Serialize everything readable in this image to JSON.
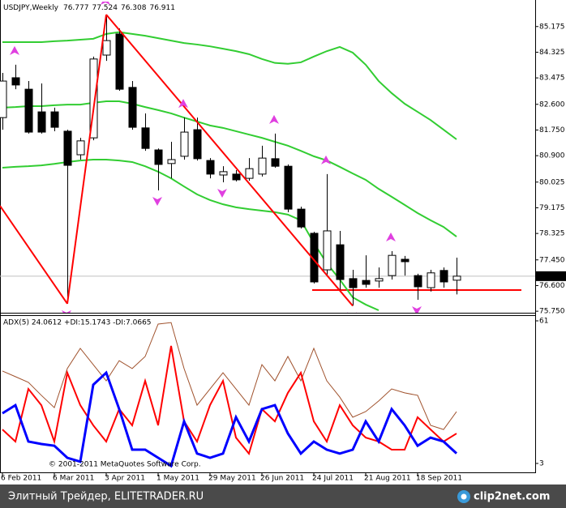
{
  "chart_data": [
    {
      "type": "candlestick",
      "title": "USDJPY,Weekly",
      "categories": [
        "6 Feb 2011",
        null,
        null,
        null,
        "6 Mar 2011",
        null,
        null,
        null,
        "3 Apr 2011",
        null,
        null,
        null,
        "1 May 2011",
        null,
        null,
        null,
        "29 May 2011",
        null,
        null,
        null,
        "26 Jun 2011",
        null,
        null,
        null,
        "24 Jul 2011",
        null,
        null,
        null,
        "21 Aug 2011",
        null,
        null,
        null,
        "18 Sep 2011",
        null,
        null,
        null
      ],
      "open": [
        82.16,
        83.48,
        83.1,
        82.35,
        82.35,
        81.71,
        80.93,
        81.49,
        84.23,
        84.93,
        83.16,
        81.82,
        81.09,
        80.64,
        80.88,
        81.76,
        80.74,
        80.26,
        80.29,
        80.15,
        80.29,
        80.8,
        80.55,
        79.13,
        78.33,
        77.12,
        77.95,
        76.83,
        76.77,
        76.75,
        76.93,
        77.47,
        76.93,
        76.53,
        77.1,
        76.777
      ],
      "high": [
        83.64,
        83.91,
        83.37,
        83.29,
        82.49,
        81.76,
        81.49,
        84.18,
        85.57,
        85.11,
        83.37,
        82.3,
        81.14,
        81.36,
        82.16,
        82.16,
        80.82,
        80.55,
        80.42,
        80.82,
        81.23,
        81.63,
        80.61,
        79.21,
        78.38,
        80.29,
        78.41,
        77.12,
        77.6,
        77.2,
        77.74,
        77.58,
        76.99,
        77.12,
        77.2,
        77.524
      ],
      "low": [
        81.76,
        83.1,
        81.63,
        81.63,
        81.71,
        76.0,
        80.77,
        81.41,
        84.04,
        83.05,
        81.76,
        81.06,
        79.75,
        80.15,
        80.77,
        80.74,
        80.15,
        80.02,
        80.05,
        80.07,
        80.21,
        80.5,
        79.03,
        78.49,
        76.67,
        76.93,
        76.4,
        75.93,
        76.53,
        76.53,
        76.8,
        76.93,
        76.13,
        76.4,
        76.53,
        76.308
      ],
      "close": [
        83.37,
        83.24,
        81.68,
        81.68,
        81.84,
        80.58,
        81.39,
        84.1,
        84.71,
        83.1,
        81.84,
        81.14,
        80.61,
        80.77,
        81.68,
        80.8,
        80.29,
        80.37,
        80.1,
        80.47,
        80.82,
        80.55,
        79.13,
        78.54,
        76.72,
        78.41,
        76.8,
        76.53,
        76.64,
        76.83,
        77.6,
        77.39,
        76.56,
        77.02,
        76.72,
        76.911
      ],
      "up_color": "#ffffff",
      "down_color": "#000000",
      "ylim": [
        75.7,
        86.0
      ],
      "yticks": [
        85.175,
        84.325,
        83.475,
        {
          "value": 82.6,
          "label": "82.600"
        },
        {
          "value": 81.75,
          "label": "81.750"
        },
        {
          "value": 80.9,
          "label": "80.900"
        },
        80.025,
        79.175,
        78.325,
        {
          "value": 77.45,
          "label": "77.450"
        },
        {
          "value": 76.6,
          "label": "76.600"
        },
        {
          "value": 75.75,
          "label": "75.750"
        }
      ],
      "series": [
        {
          "style": "line",
          "color": "#32cd32",
          "values": [
            84.66,
            84.66,
            84.66,
            84.66,
            84.69,
            84.71,
            84.74,
            84.77,
            84.93,
            84.99,
            84.93,
            84.87,
            84.79,
            84.71,
            84.63,
            84.58,
            84.52,
            84.44,
            84.36,
            84.26,
            84.1,
            83.97,
            83.94,
            83.99,
            84.18,
            84.36,
            84.5,
            84.31,
            83.91,
            83.37,
            82.97,
            82.62,
            82.35,
            82.08,
            81.76,
            81.44
          ]
        },
        {
          "style": "line",
          "color": "#32cd32",
          "values": [
            82.49,
            82.51,
            82.54,
            82.54,
            82.57,
            82.59,
            82.59,
            82.65,
            82.7,
            82.7,
            82.62,
            82.51,
            82.41,
            82.3,
            82.16,
            82.03,
            81.9,
            81.82,
            81.71,
            81.6,
            81.49,
            81.36,
            81.23,
            81.06,
            80.88,
            80.74,
            80.53,
            80.31,
            80.1,
            79.8,
            79.54,
            79.27,
            79.0,
            78.76,
            78.54,
            78.22
          ]
        },
        {
          "style": "line",
          "color": "#32cd32",
          "values": [
            80.5,
            80.53,
            80.55,
            80.58,
            80.63,
            80.69,
            80.74,
            80.77,
            80.77,
            80.74,
            80.69,
            80.55,
            80.37,
            80.15,
            79.88,
            79.62,
            79.43,
            79.29,
            79.19,
            79.13,
            79.08,
            79.03,
            78.95,
            78.76,
            78.01,
            77.34,
            76.8,
            76.21,
            75.97,
            75.78,
            null,
            null,
            null,
            null,
            null,
            null
          ]
        },
        {
          "style": "section",
          "color": "#ff0000",
          "values": [
            79.24,
            null,
            null,
            null,
            null,
            76.0,
            null,
            null,
            85.57,
            null,
            null,
            null,
            null,
            null,
            null,
            null,
            null,
            null,
            null,
            null,
            null,
            null,
            null,
            null,
            null,
            null,
            null,
            75.93,
            null,
            null,
            null,
            null,
            null,
            null,
            null,
            null
          ]
        },
        {
          "style": "arrow-up",
          "color": "#e040e0",
          "values": [
            null,
            83.91,
            null,
            null,
            null,
            null,
            null,
            null,
            85.57,
            null,
            null,
            null,
            null,
            null,
            82.16,
            null,
            null,
            null,
            null,
            null,
            null,
            81.63,
            null,
            null,
            null,
            80.29,
            null,
            null,
            null,
            null,
            77.74,
            null,
            null,
            null,
            null,
            null
          ]
        },
        {
          "style": "arrow-down",
          "color": "#e040e0",
          "values": [
            null,
            null,
            null,
            null,
            null,
            76.0,
            null,
            null,
            null,
            null,
            null,
            null,
            79.75,
            null,
            null,
            null,
            null,
            80.02,
            null,
            null,
            null,
            null,
            null,
            null,
            null,
            null,
            null,
            75.93,
            null,
            null,
            null,
            null,
            76.13,
            null,
            null,
            null
          ]
        }
      ],
      "hlines": [
        {
          "value": 76.45,
          "color": "#ff0000"
        }
      ],
      "last_price_color": "#c0c0c0"
    },
    {
      "type": "line",
      "title": "ADX(5) 24.0612 +DI:15.1743 -DI:7.0665",
      "annotation": "© 2001-2011 MetaQuotes Software Corp.",
      "ylim": [
        -0.63,
        63.31
      ],
      "yticks": [
        61,
        3
      ],
      "series": [
        {
          "color": "#a0522d",
          "width": 1,
          "values": [
            40.6,
            38.3,
            36.0,
            30.7,
            25.7,
            41.6,
            49.8,
            43.2,
            36.6,
            44.8,
            41.6,
            46.5,
            59.7,
            60.3,
            41.6,
            26.7,
            33.3,
            39.9,
            33.3,
            26.7,
            43.2,
            36.6,
            46.5,
            36.6,
            49.8,
            36.6,
            30.0,
            21.8,
            24.1,
            28.4,
            33.3,
            31.7,
            30.7,
            18.5,
            16.8,
            24.0612
          ]
        },
        {
          "color": "#ff0000",
          "width": 2,
          "values": [
            16.8,
            11.9,
            33.3,
            26.7,
            11.9,
            39.9,
            26.7,
            18.5,
            11.9,
            25.1,
            18.5,
            36.6,
            18.5,
            50.8,
            20.1,
            11.9,
            26.7,
            36.6,
            13.5,
            7.0,
            25.1,
            20.1,
            31.7,
            39.9,
            20.1,
            11.9,
            26.7,
            18.5,
            13.5,
            11.9,
            8.6,
            8.6,
            21.8,
            16.8,
            11.9,
            15.1743
          ]
        },
        {
          "color": "#0000ff",
          "width": 3,
          "values": [
            23.4,
            26.7,
            11.9,
            10.9,
            10.2,
            5.3,
            3.7,
            35.0,
            39.9,
            25.1,
            8.6,
            8.6,
            5.3,
            2.0,
            20.1,
            7.0,
            5.3,
            7.0,
            21.8,
            11.9,
            25.1,
            26.7,
            15.2,
            7.0,
            11.9,
            8.6,
            7.0,
            8.6,
            20.1,
            11.9,
            25.1,
            18.5,
            10.2,
            13.5,
            11.9,
            7.0665
          ]
        }
      ]
    }
  ],
  "footer": {
    "caption": "Элитный Трейдер, ELITETRADER.RU",
    "logo": "clip2net.com"
  }
}
